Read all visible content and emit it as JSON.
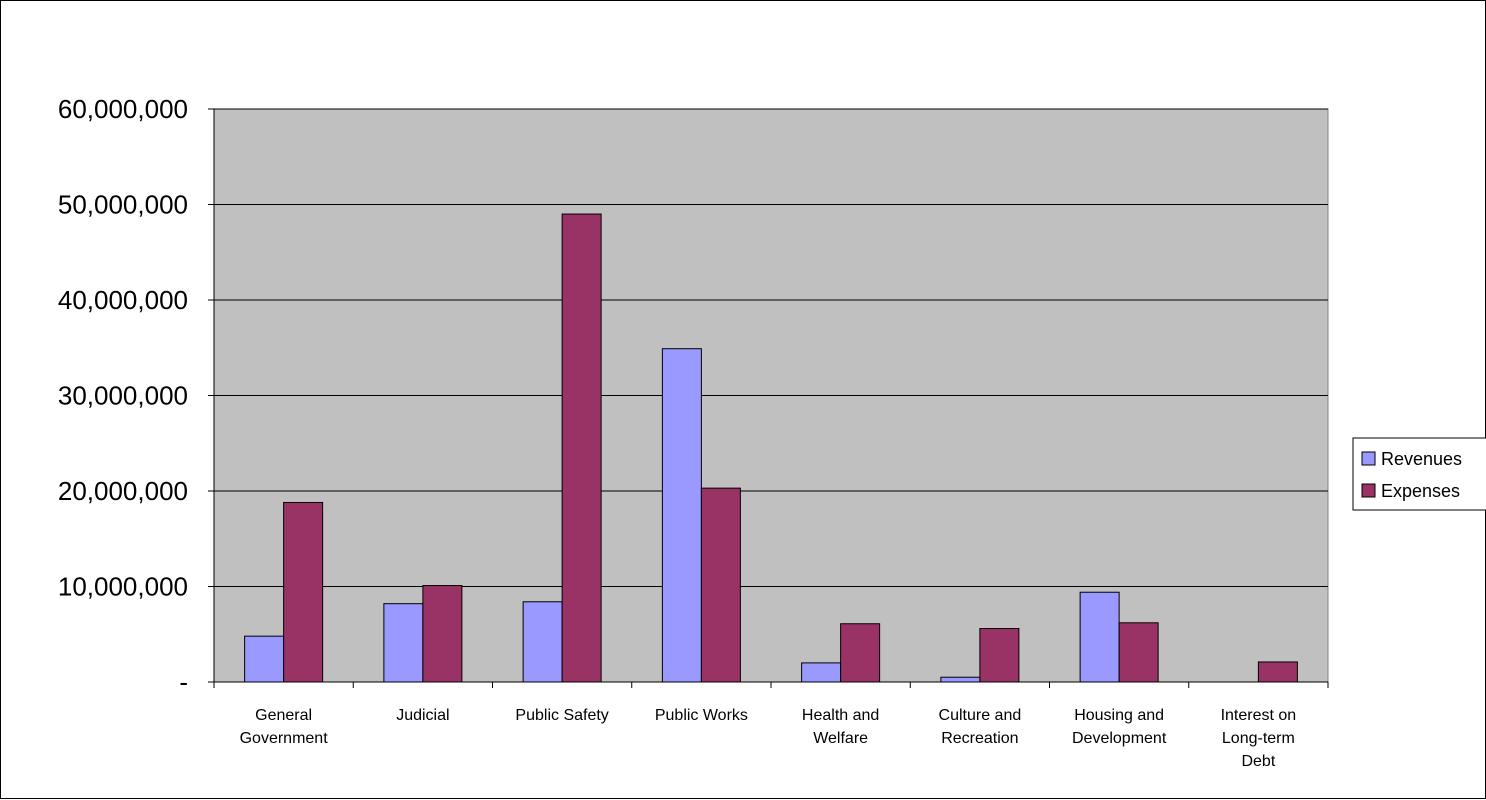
{
  "chart_data": {
    "type": "bar",
    "categories": [
      [
        "General",
        "Government"
      ],
      [
        "Judicial"
      ],
      [
        "Public Safety"
      ],
      [
        "Public Works"
      ],
      [
        "Health and",
        "Welfare"
      ],
      [
        "Culture and",
        "Recreation"
      ],
      [
        "Housing and",
        "Development"
      ],
      [
        "Interest on",
        "Long-term",
        "Debt"
      ]
    ],
    "series": [
      {
        "name": "Revenues",
        "color": "#9999ff",
        "values": [
          4800000,
          8200000,
          8400000,
          34900000,
          2000000,
          500000,
          9400000,
          0
        ]
      },
      {
        "name": "Expenses",
        "color": "#993366",
        "values": [
          18800000,
          10100000,
          49000000,
          20300000,
          6100000,
          5600000,
          6200000,
          2100000
        ]
      }
    ],
    "ylim": [
      0,
      60000000
    ],
    "yticks": [
      {
        "value": 0,
        "label": "-"
      },
      {
        "value": 10000000,
        "label": "10,000,000"
      },
      {
        "value": 20000000,
        "label": "20,000,000"
      },
      {
        "value": 30000000,
        "label": "30,000,000"
      },
      {
        "value": 40000000,
        "label": "40,000,000"
      },
      {
        "value": 50000000,
        "label": "50,000,000"
      },
      {
        "value": 60000000,
        "label": "60,000,000"
      }
    ],
    "title": "",
    "xlabel": "",
    "ylabel": "",
    "plot_background": "#c0c0c0",
    "grid": true,
    "legend_position": "right"
  }
}
